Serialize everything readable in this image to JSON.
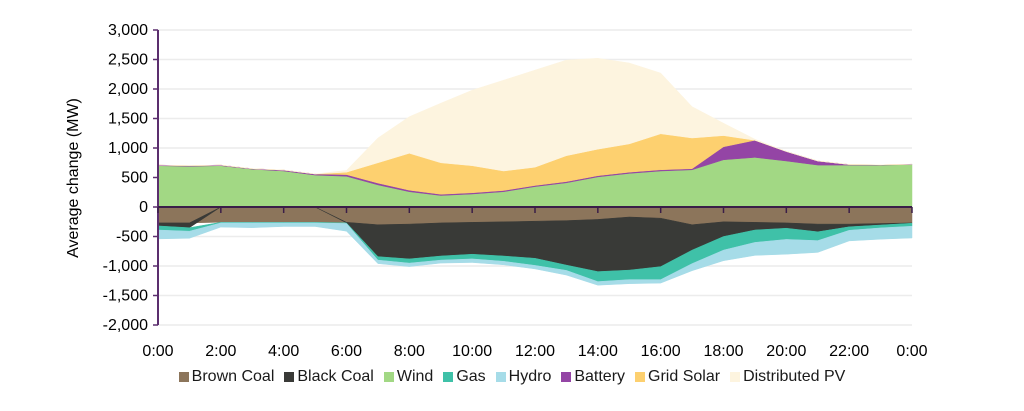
{
  "chart_data": {
    "type": "area",
    "stacked": true,
    "title": "",
    "xlabel": "",
    "ylabel": "Average change (MW)",
    "ylim": [
      -2000,
      3000
    ],
    "yticks": [
      -2000,
      -1500,
      -1000,
      -500,
      0,
      500,
      1000,
      1500,
      2000,
      2500,
      3000
    ],
    "ytick_labels": [
      "-2,000",
      "-1,500",
      "-1,000",
      "-500",
      "0",
      "500",
      "1,000",
      "1,500",
      "2,000",
      "2,500",
      "3,000"
    ],
    "xtick_labels": [
      "0:00",
      "2:00",
      "4:00",
      "6:00",
      "8:00",
      "10:00",
      "12:00",
      "14:00",
      "16:00",
      "18:00",
      "20:00",
      "22:00",
      "0:00"
    ],
    "x_hours": [
      0,
      1,
      2,
      3,
      4,
      5,
      6,
      7,
      8,
      9,
      10,
      11,
      12,
      13,
      14,
      15,
      16,
      17,
      18,
      19,
      20,
      21,
      22,
      23,
      24
    ],
    "grid": "horizontal",
    "legend_position": "bottom",
    "series": [
      {
        "name": "Brown Coal",
        "color": "#8c755b",
        "values": [
          -270,
          -270,
          -260,
          -260,
          -260,
          -260,
          -260,
          -300,
          -290,
          -270,
          -260,
          -250,
          -240,
          -230,
          -210,
          -170,
          -190,
          -300,
          -250,
          -260,
          -270,
          -290,
          -290,
          -280,
          -270
        ]
      },
      {
        "name": "Black Coal",
        "color": "#393a37",
        "values": [
          -50,
          -80,
          0,
          0,
          0,
          0,
          -10,
          -540,
          -590,
          -560,
          -540,
          -580,
          -630,
          -755,
          -885,
          -900,
          -820,
          -430,
          -250,
          -130,
          -90,
          -130,
          -45,
          -25,
          -5
        ]
      },
      {
        "name": "Wind",
        "color": "#a2d884",
        "values": [
          700,
          690,
          700,
          640,
          610,
          540,
          520,
          375,
          260,
          195,
          220,
          260,
          345,
          410,
          510,
          570,
          610,
          630,
          800,
          840,
          780,
          710,
          710,
          710,
          720
        ]
      },
      {
        "name": "Gas",
        "color": "#3fc1a8",
        "values": [
          -70,
          -60,
          -10,
          -10,
          -10,
          -10,
          -10,
          -60,
          -70,
          -70,
          -80,
          -90,
          -120,
          -90,
          -170,
          -160,
          -220,
          -230,
          -230,
          -210,
          -190,
          -150,
          -60,
          -50,
          -50
        ]
      },
      {
        "name": "Hydro",
        "color": "#a6dce8",
        "values": [
          -150,
          -120,
          -70,
          -80,
          -60,
          -60,
          -130,
          -60,
          -60,
          -50,
          -60,
          -60,
          -60,
          -80,
          -60,
          -70,
          -60,
          -120,
          -180,
          -220,
          -250,
          -200,
          -180,
          -190,
          -200
        ]
      },
      {
        "name": "Battery",
        "color": "#9445a5",
        "values": [
          10,
          10,
          10,
          10,
          15,
          20,
          30,
          30,
          25,
          20,
          20,
          20,
          20,
          20,
          20,
          20,
          20,
          20,
          220,
          290,
          160,
          70,
          10,
          5,
          5
        ]
      },
      {
        "name": "Grid Solar",
        "color": "#fdd06f",
        "values": [
          0,
          0,
          0,
          0,
          0,
          0,
          40,
          345,
          625,
          535,
          460,
          330,
          310,
          440,
          450,
          480,
          610,
          520,
          190,
          0,
          0,
          0,
          0,
          0,
          0
        ]
      },
      {
        "name": "Distributed PV",
        "color": "#fdf4df",
        "values": [
          0,
          0,
          0,
          0,
          0,
          0,
          30,
          420,
          620,
          1010,
          1280,
          1540,
          1645,
          1620,
          1540,
          1370,
          1030,
          530,
          210,
          20,
          0,
          0,
          0,
          0,
          0
        ]
      }
    ]
  },
  "colors": {
    "axis": "#5b2e6e",
    "grid": "#ececec"
  }
}
